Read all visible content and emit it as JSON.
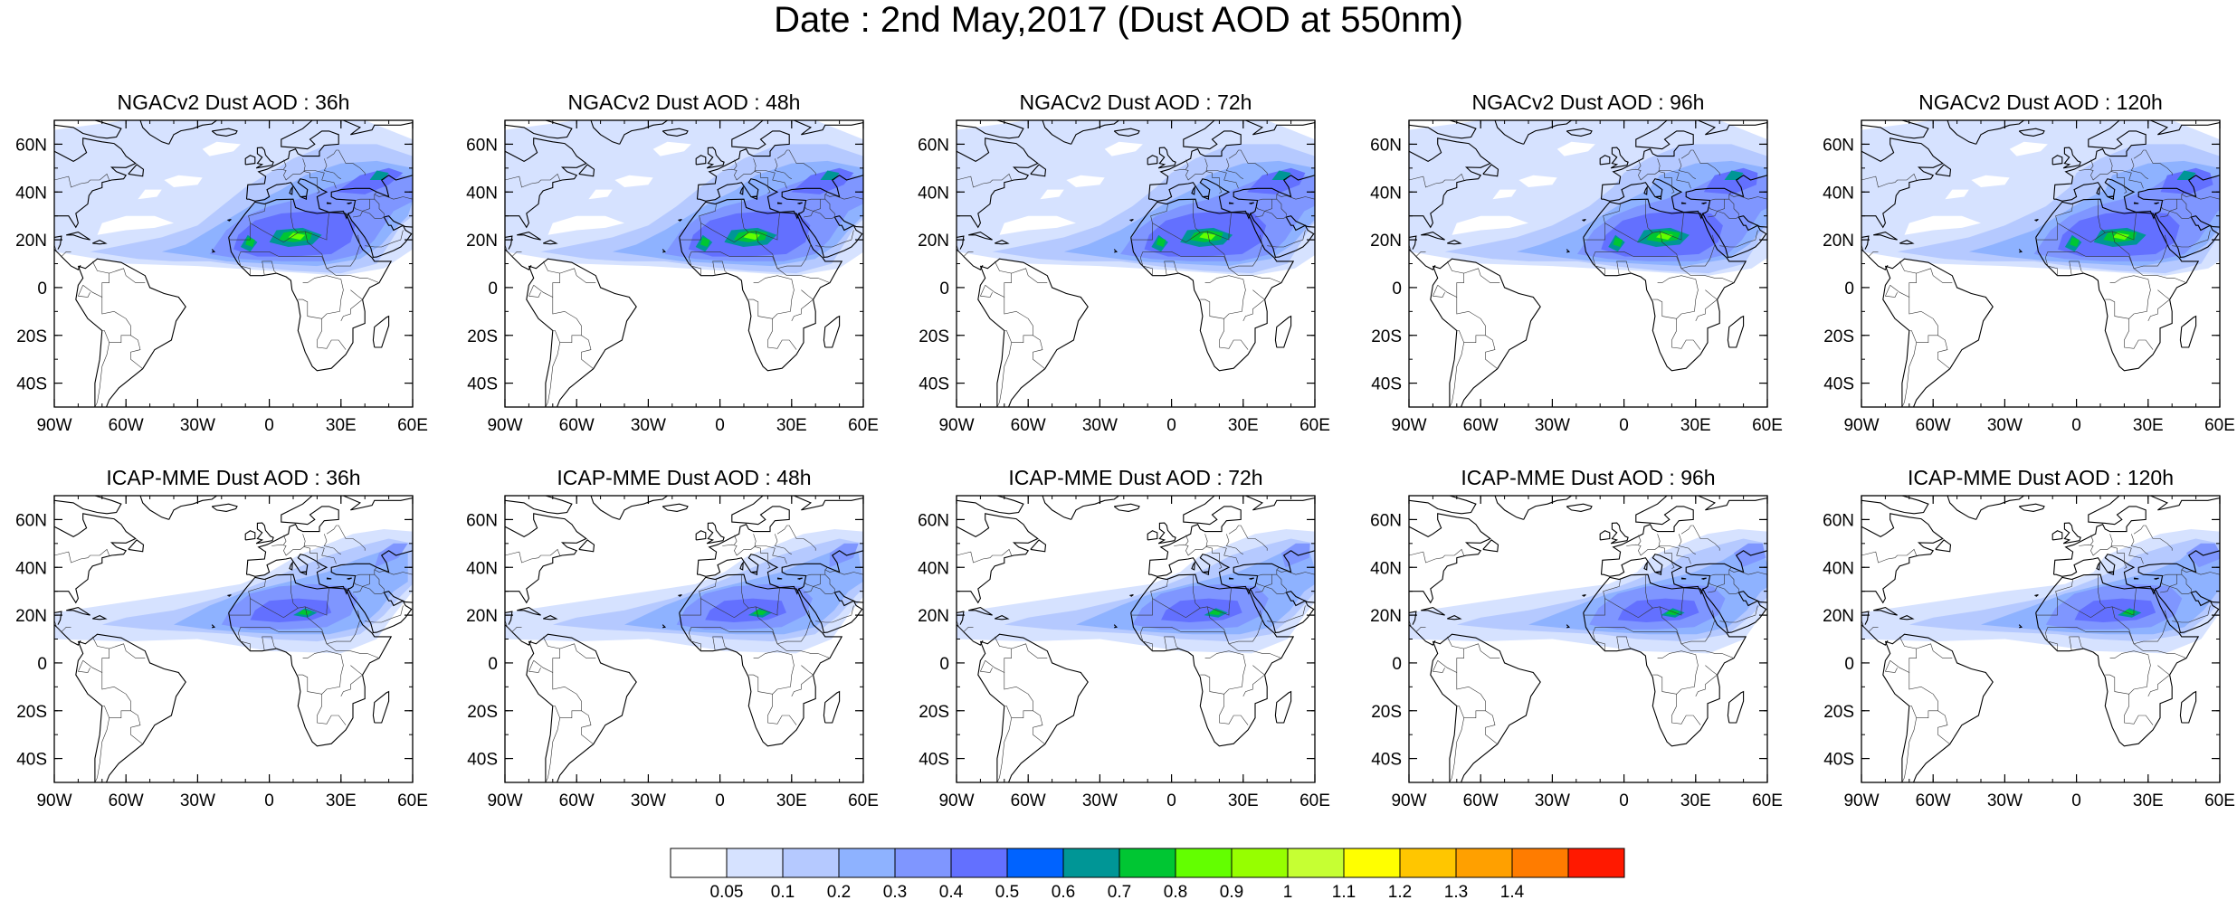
{
  "title": "Date : 2nd May,2017 (Dust AOD at 550nm)",
  "panels": [
    {
      "title": "NGACv2 Dust AOD : 36h",
      "model": "ngac",
      "spread": 0.0
    },
    {
      "title": "NGACv2 Dust AOD : 48h",
      "model": "ngac",
      "spread": 0.03
    },
    {
      "title": "NGACv2 Dust AOD : 72h",
      "model": "ngac",
      "spread": 0.06
    },
    {
      "title": "NGACv2 Dust AOD : 96h",
      "model": "ngac",
      "spread": 0.09
    },
    {
      "title": "NGACv2 Dust AOD : 120h",
      "model": "ngac",
      "spread": 0.12
    },
    {
      "title": "ICAP-MME Dust AOD : 36h",
      "model": "icap",
      "spread": 0.0
    },
    {
      "title": "ICAP-MME Dust AOD : 48h",
      "model": "icap",
      "spread": 0.03
    },
    {
      "title": "ICAP-MME Dust AOD : 72h",
      "model": "icap",
      "spread": 0.06
    },
    {
      "title": "ICAP-MME Dust AOD : 96h",
      "model": "icap",
      "spread": 0.09
    },
    {
      "title": "ICAP-MME Dust AOD : 120h",
      "model": "icap",
      "spread": 0.12
    }
  ],
  "lat_ticks": [
    {
      "v": 60,
      "label": "60N"
    },
    {
      "v": 40,
      "label": "40N"
    },
    {
      "v": 20,
      "label": "20N"
    },
    {
      "v": 0,
      "label": "0"
    },
    {
      "v": -20,
      "label": "20S"
    },
    {
      "v": -40,
      "label": "40S"
    }
  ],
  "lon_ticks": [
    {
      "v": -90,
      "label": "90W"
    },
    {
      "v": -60,
      "label": "60W"
    },
    {
      "v": -30,
      "label": "30W"
    },
    {
      "v": 0,
      "label": "0"
    },
    {
      "v": 30,
      "label": "30E"
    },
    {
      "v": 60,
      "label": "60E"
    }
  ],
  "extent": {
    "lon": [
      -90,
      60
    ],
    "lat": [
      -50,
      70
    ]
  },
  "colorbar": {
    "colors": [
      "#ffffff",
      "#d6e2ff",
      "#b5c9ff",
      "#8eb2ff",
      "#7f96ff",
      "#6370ff",
      "#0063ff",
      "#009696",
      "#00c633",
      "#63ff00",
      "#96ff00",
      "#c6ff33",
      "#ffff00",
      "#ffc600",
      "#ffa000",
      "#ff7c00",
      "#ff1900"
    ],
    "levels": [
      "0.05",
      "0.1",
      "0.2",
      "0.3",
      "0.4",
      "0.5",
      "0.6",
      "0.7",
      "0.8",
      "0.9",
      "1",
      "1.1",
      "1.2",
      "1.3",
      "1.4"
    ]
  }
}
